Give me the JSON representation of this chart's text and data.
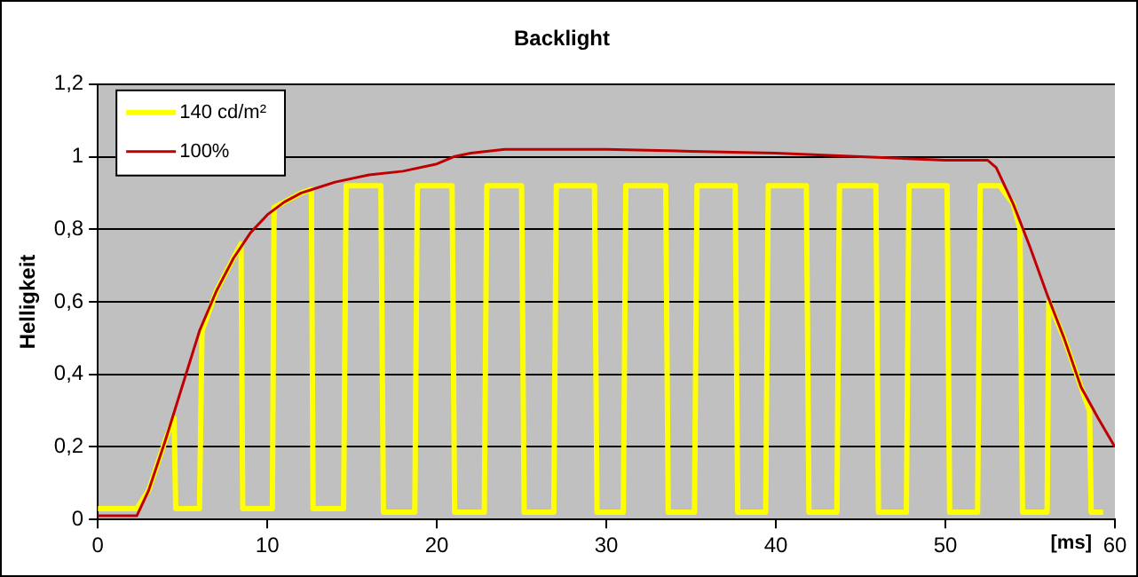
{
  "chart_data": {
    "type": "line",
    "title": "Backlight",
    "xlabel": "[ms]",
    "ylabel": "Helligkeit",
    "xlim": [
      0,
      60
    ],
    "xticks": [
      0,
      10,
      20,
      30,
      40,
      50,
      60
    ],
    "ylim": [
      0,
      1.2
    ],
    "yticks": [
      {
        "value": 0,
        "label": "0"
      },
      {
        "value": 0.2,
        "label": "0,2"
      },
      {
        "value": 0.4,
        "label": "0,4"
      },
      {
        "value": 0.6,
        "label": "0,6"
      },
      {
        "value": 0.8,
        "label": "0,8"
      },
      {
        "value": 1,
        "label": "1"
      },
      {
        "value": 1.2,
        "label": "1,2"
      }
    ],
    "grid": "y",
    "legend": "top left",
    "marker": "none",
    "line_style": "solid",
    "series": [
      {
        "name": "140 cd/m²",
        "color": "#ffff00",
        "x": [
          0,
          2.3,
          3,
          4,
          4.5,
          4.6,
          6.0,
          6.15,
          7,
          8,
          8.45,
          8.55,
          10.3,
          10.4,
          11,
          12,
          12.6,
          12.7,
          14.5,
          14.65,
          16.7,
          16.85,
          18.7,
          18.85,
          20.9,
          21.05,
          22.8,
          22.95,
          25.0,
          25.15,
          26.9,
          27.05,
          29.3,
          29.45,
          31.0,
          31.15,
          33.5,
          33.65,
          35.2,
          35.35,
          37.6,
          37.75,
          39.4,
          39.55,
          41.8,
          41.95,
          43.6,
          43.75,
          45.9,
          46.05,
          47.7,
          47.85,
          50.1,
          50.25,
          51.9,
          52.05,
          53.2,
          54,
          54.4,
          54.55,
          56.0,
          56.1,
          57,
          58,
          58.5,
          58.6,
          59.3
        ],
        "values": [
          0.03,
          0.03,
          0.08,
          0.22,
          0.28,
          0.03,
          0.03,
          0.52,
          0.63,
          0.72,
          0.76,
          0.03,
          0.03,
          0.86,
          0.875,
          0.9,
          0.91,
          0.03,
          0.03,
          0.92,
          0.92,
          0.02,
          0.02,
          0.92,
          0.92,
          0.02,
          0.02,
          0.92,
          0.92,
          0.02,
          0.02,
          0.92,
          0.92,
          0.02,
          0.02,
          0.92,
          0.92,
          0.02,
          0.02,
          0.92,
          0.92,
          0.02,
          0.02,
          0.92,
          0.92,
          0.02,
          0.02,
          0.92,
          0.92,
          0.02,
          0.02,
          0.92,
          0.92,
          0.02,
          0.02,
          0.92,
          0.92,
          0.87,
          0.8,
          0.02,
          0.02,
          0.6,
          0.5,
          0.365,
          0.3,
          0.02,
          0.02
        ]
      },
      {
        "name": "100%",
        "color": "#c00000",
        "x": [
          0,
          2.3,
          3,
          4,
          5,
          6,
          7,
          8,
          9,
          10,
          11,
          12,
          13,
          14,
          16,
          18,
          20,
          21,
          22,
          24,
          30,
          35,
          40,
          45,
          50,
          52.5,
          53,
          54,
          55,
          56,
          57,
          58,
          59,
          60
        ],
        "values": [
          0.01,
          0.01,
          0.08,
          0.22,
          0.37,
          0.52,
          0.63,
          0.72,
          0.79,
          0.84,
          0.875,
          0.9,
          0.915,
          0.93,
          0.95,
          0.96,
          0.98,
          1.0,
          1.01,
          1.02,
          1.02,
          1.015,
          1.01,
          1.0,
          0.99,
          0.99,
          0.97,
          0.87,
          0.75,
          0.62,
          0.5,
          0.365,
          0.28,
          0.2
        ]
      }
    ]
  }
}
